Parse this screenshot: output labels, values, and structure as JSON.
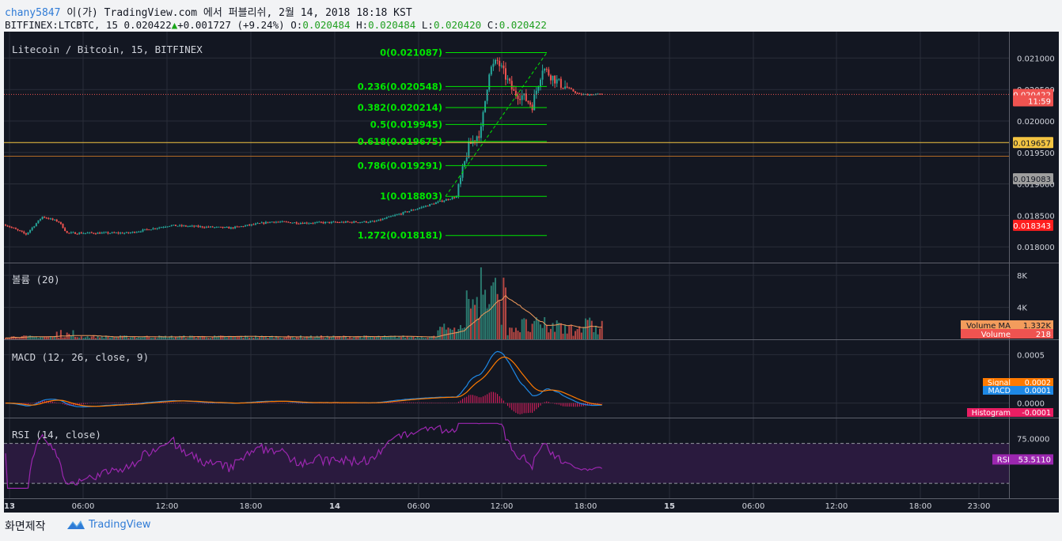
{
  "header": {
    "user": "chany5847",
    "published_text": "이(가) TradingView.com 에서 퍼블리쉬, 2월 14, 2018 18:18 KST",
    "symbol_line": "BITFINEX:LTCBTC, 15 0.020422",
    "change": "+0.001727 (+9.24%)",
    "open_label": "O:",
    "open_value": "0.020484",
    "high_label": "H:",
    "high_value": "0.020484",
    "low_label": "L:",
    "low_value": "0.020420",
    "close_label": "C:",
    "close_value": "0.020422"
  },
  "footer": {
    "text": "화면제작",
    "brand": "TradingView"
  },
  "chart_data": [
    {
      "type": "candlestick",
      "title": "Litecoin / Bitcoin, 15, BITFINEX",
      "x_ticks": [
        "13",
        "06:00",
        "12:00",
        "18:00",
        "14",
        "06:00",
        "12:00",
        "18:00",
        "15",
        "06:00",
        "12:00",
        "18:00",
        "23:00"
      ],
      "y_ticks": [
        "0.021000",
        "0.020500",
        "0.020000",
        "0.019500",
        "0.019000",
        "0.018500",
        "0.018000"
      ],
      "ylim": [
        0.01775,
        0.02142
      ],
      "anchors": [
        {
          "t": 0,
          "p": 0.01835
        },
        {
          "t": 10,
          "p": 0.0182
        },
        {
          "t": 18,
          "p": 0.01848
        },
        {
          "t": 26,
          "p": 0.0184
        },
        {
          "t": 30,
          "p": 0.01822
        },
        {
          "t": 60,
          "p": 0.01822
        },
        {
          "t": 80,
          "p": 0.01834
        },
        {
          "t": 110,
          "p": 0.0183
        },
        {
          "t": 130,
          "p": 0.0184
        },
        {
          "t": 145,
          "p": 0.01838
        },
        {
          "t": 180,
          "p": 0.0184
        },
        {
          "t": 200,
          "p": 0.0186
        },
        {
          "t": 220,
          "p": 0.0188
        },
        {
          "t": 226,
          "p": 0.0196
        },
        {
          "t": 232,
          "p": 0.01985
        },
        {
          "t": 236,
          "p": 0.0208
        },
        {
          "t": 240,
          "p": 0.02095
        },
        {
          "t": 248,
          "p": 0.02045
        },
        {
          "t": 252,
          "p": 0.0204
        },
        {
          "t": 257,
          "p": 0.02025
        },
        {
          "t": 262,
          "p": 0.02085
        },
        {
          "t": 270,
          "p": 0.0206
        },
        {
          "t": 280,
          "p": 0.02042
        },
        {
          "t": 291,
          "p": 0.020422
        }
      ],
      "fibonacci": [
        {
          "label": "0(0.021087)",
          "value": 0.021087
        },
        {
          "label": "0.236(0.020548)",
          "value": 0.020548
        },
        {
          "label": "0.382(0.020214)",
          "value": 0.020214
        },
        {
          "label": "0.5(0.019945)",
          "value": 0.019945
        },
        {
          "label": "0.618(0.019675)",
          "value": 0.019675
        },
        {
          "label": "0.786(0.019291)",
          "value": 0.019291
        },
        {
          "label": "1(0.018803)",
          "value": 0.018803
        },
        {
          "label": "1.272(0.018181)",
          "value": 0.018181
        }
      ],
      "price_tags": [
        {
          "label": "0.020422",
          "value": 0.020422,
          "color": "#ef5350",
          "text_color": "#ffffff"
        },
        {
          "label": "11:59",
          "value": 0.02032,
          "color": "#ef5350",
          "text_color": "#ffffff"
        },
        {
          "label": "0.019657",
          "value": 0.019657,
          "color": "#f4c542",
          "text_color": "#131722"
        },
        {
          "label": "0.019083",
          "value": 0.019083,
          "color": "#9e9e9e",
          "text_color": "#131722"
        },
        {
          "label": "0.018343",
          "value": 0.018343,
          "color": "#ff1e1e",
          "text_color": "#ffffff"
        }
      ],
      "horizontal_lines": [
        {
          "value": 0.019657,
          "color": "#f4c542"
        },
        {
          "value": 0.01944,
          "color": "#b06a26"
        }
      ]
    },
    {
      "type": "bar",
      "title": "볼륨 (20)",
      "y_ticks": [
        "8K",
        "4K"
      ],
      "ylim": [
        0,
        9500
      ],
      "tags": [
        {
          "label": "Volume MA",
          "value": "1.332K",
          "color": "#f39c5c"
        },
        {
          "label": "Volume",
          "value": "218",
          "color": "#ef5350"
        }
      ]
    },
    {
      "type": "line",
      "title": "MACD (12, 26, close, 9)",
      "y_ticks": [
        "0.0005",
        "0.0000"
      ],
      "ylim": [
        -0.00015,
        0.00065
      ],
      "tags": [
        {
          "label": "Signal",
          "value": "0.0002",
          "color": "#ff7a00"
        },
        {
          "label": "MACD",
          "value": "0.0001",
          "color": "#1e88e5"
        },
        {
          "label": "Histogram",
          "value": "-0.0001",
          "color": "#e91e63"
        }
      ]
    },
    {
      "type": "line",
      "title": "RSI (14, close)",
      "y_ticks": [
        "75.0000"
      ],
      "ylim": [
        15,
        95
      ],
      "bands": [
        70,
        30
      ],
      "tags": [
        {
          "label": "RSI",
          "value": "53.5110",
          "color": "#9c27b0"
        }
      ]
    }
  ],
  "colors": {
    "background": "#131722",
    "grid": "#2a2e39",
    "up": "#26a69a",
    "down": "#ef5350",
    "fib": "#00e600",
    "volume_ma": "#f39c5c",
    "macd": "#1e88e5",
    "signal": "#ff7a00",
    "histogram": "#e91e63",
    "rsi": "#9c27b0"
  }
}
